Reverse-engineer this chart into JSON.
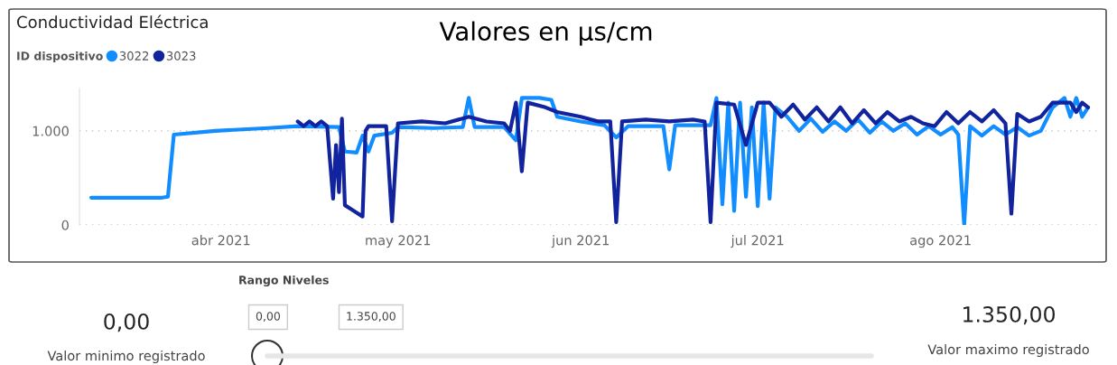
{
  "chart_data": {
    "type": "line",
    "title": "Conductividad Eléctrica",
    "subtitle": "Valores en µs/cm",
    "legend_title": "ID dispositivo",
    "legend": "top left",
    "annotations": [
      "Rango Niveles",
      "0,00",
      "1.350,00",
      "0,00",
      "Valor minimo registrado",
      "1.350,00",
      "Valor maximo registrado"
    ],
    "xlim": [
      "2021-03-08",
      "2021-08-28"
    ],
    "xticks": [
      {
        "value": "2021-04-01",
        "label": "abr 2021"
      },
      {
        "value": "2021-05-01",
        "label": "may 2021"
      },
      {
        "value": "2021-06-01",
        "label": "jun 2021"
      },
      {
        "value": "2021-07-01",
        "label": "jul 2021"
      },
      {
        "value": "2021-08-01",
        "label": "ago 2021"
      }
    ],
    "ylim": [
      0,
      1450
    ],
    "yticks": [
      0,
      {
        "value": 1000,
        "label": "1.000"
      }
    ],
    "grid": "y",
    "line_style": "solid",
    "marker": "none",
    "series": [
      {
        "name": "3022",
        "color": "#118dff",
        "x": [
          "2021-03-10",
          "2021-03-22",
          "2021-03-23",
          "2021-03-24",
          "2021-03-31",
          "2021-04-09",
          "2021-04-14",
          "2021-04-21",
          "2021-04-22",
          "2021-04-24",
          "2021-04-25",
          "2021-04-26",
          "2021-04-27",
          "2021-04-30",
          "2021-05-01",
          "2021-05-07",
          "2021-05-12",
          "2021-05-13",
          "2021-05-14",
          "2021-05-19",
          "2021-05-21",
          "2021-05-22",
          "2021-05-25",
          "2021-05-27",
          "2021-05-28",
          "2021-06-01",
          "2021-06-05",
          "2021-06-07",
          "2021-06-09",
          "2021-06-15",
          "2021-06-16",
          "2021-06-17",
          "2021-06-23",
          "2021-06-24",
          "2021-06-25",
          "2021-06-26",
          "2021-06-27",
          "2021-06-28",
          "2021-06-29",
          "2021-06-30",
          "2021-07-01",
          "2021-07-02",
          "2021-07-03",
          "2021-07-04",
          "2021-07-06",
          "2021-07-08",
          "2021-07-10",
          "2021-07-12",
          "2021-07-14",
          "2021-07-16",
          "2021-07-18",
          "2021-07-20",
          "2021-07-22",
          "2021-07-24",
          "2021-07-26",
          "2021-07-28",
          "2021-07-30",
          "2021-08-01",
          "2021-08-03",
          "2021-08-04",
          "2021-08-05",
          "2021-08-06",
          "2021-08-08",
          "2021-08-10",
          "2021-08-12",
          "2021-08-14",
          "2021-08-16",
          "2021-08-18",
          "2021-08-20",
          "2021-08-22",
          "2021-08-23",
          "2021-08-24",
          "2021-08-25",
          "2021-08-26"
        ],
        "values": [
          290,
          290,
          300,
          960,
          1000,
          1030,
          1050,
          1040,
          780,
          770,
          950,
          780,
          950,
          980,
          1040,
          1030,
          1040,
          1350,
          1040,
          1040,
          900,
          1350,
          1350,
          1330,
          1150,
          1100,
          1060,
          930,
          1050,
          1050,
          590,
          1060,
          1060,
          1350,
          220,
          1300,
          150,
          1300,
          300,
          1250,
          200,
          1300,
          280,
          1250,
          1150,
          1000,
          1130,
          990,
          1100,
          1000,
          1120,
          980,
          1100,
          1000,
          1080,
          960,
          1050,
          960,
          1040,
          960,
          0,
          1050,
          950,
          1050,
          960,
          1040,
          950,
          1000,
          1250,
          1350,
          1150,
          1350,
          1150,
          1250
        ]
      },
      {
        "name": "3023",
        "color": "#12239e",
        "x": [
          "2021-04-14",
          "2021-04-15",
          "2021-04-16",
          "2021-04-17",
          "2021-04-18",
          "2021-04-19",
          "2021-04-20T00:00",
          "2021-04-20T12:00",
          "2021-04-21T00:00",
          "2021-04-21T12:00",
          "2021-04-22",
          "2021-04-23",
          "2021-04-24",
          "2021-04-25T00:00",
          "2021-04-25T12:00",
          "2021-04-26",
          "2021-04-29",
          "2021-04-30",
          "2021-05-01",
          "2021-05-05",
          "2021-05-09",
          "2021-05-13",
          "2021-05-16",
          "2021-05-19",
          "2021-05-20",
          "2021-05-21",
          "2021-05-22",
          "2021-05-23",
          "2021-05-26",
          "2021-05-28",
          "2021-06-01",
          "2021-06-04",
          "2021-06-06",
          "2021-06-07",
          "2021-06-08",
          "2021-06-12",
          "2021-06-16",
          "2021-06-20",
          "2021-06-22",
          "2021-06-23",
          "2021-06-24",
          "2021-06-27",
          "2021-06-29",
          "2021-07-01",
          "2021-07-03",
          "2021-07-05",
          "2021-07-07",
          "2021-07-09",
          "2021-07-11",
          "2021-07-13",
          "2021-07-15",
          "2021-07-17",
          "2021-07-19",
          "2021-07-21",
          "2021-07-23",
          "2021-07-25",
          "2021-07-27",
          "2021-07-29",
          "2021-07-31",
          "2021-08-02",
          "2021-08-04",
          "2021-08-06",
          "2021-08-08",
          "2021-08-10",
          "2021-08-12",
          "2021-08-13",
          "2021-08-14",
          "2021-08-16",
          "2021-08-18",
          "2021-08-20",
          "2021-08-21",
          "2021-08-23",
          "2021-08-24",
          "2021-08-25",
          "2021-08-26"
        ],
        "values": [
          1100,
          1050,
          1100,
          1050,
          1100,
          1050,
          280,
          850,
          350,
          1130,
          210,
          170,
          130,
          90,
          1000,
          1050,
          1050,
          40,
          1080,
          1100,
          1080,
          1150,
          1100,
          1080,
          1000,
          1300,
          570,
          1300,
          1250,
          1200,
          1150,
          1100,
          1100,
          30,
          1100,
          1120,
          1100,
          1120,
          1100,
          30,
          1300,
          1280,
          850,
          1300,
          1300,
          1150,
          1280,
          1120,
          1250,
          1100,
          1250,
          1080,
          1220,
          1080,
          1200,
          1100,
          1150,
          1080,
          1050,
          1200,
          1080,
          1200,
          1100,
          1220,
          1080,
          120,
          1180,
          1100,
          1150,
          1300,
          1300,
          1300,
          1200,
          1300,
          1250
        ]
      }
    ]
  }
}
